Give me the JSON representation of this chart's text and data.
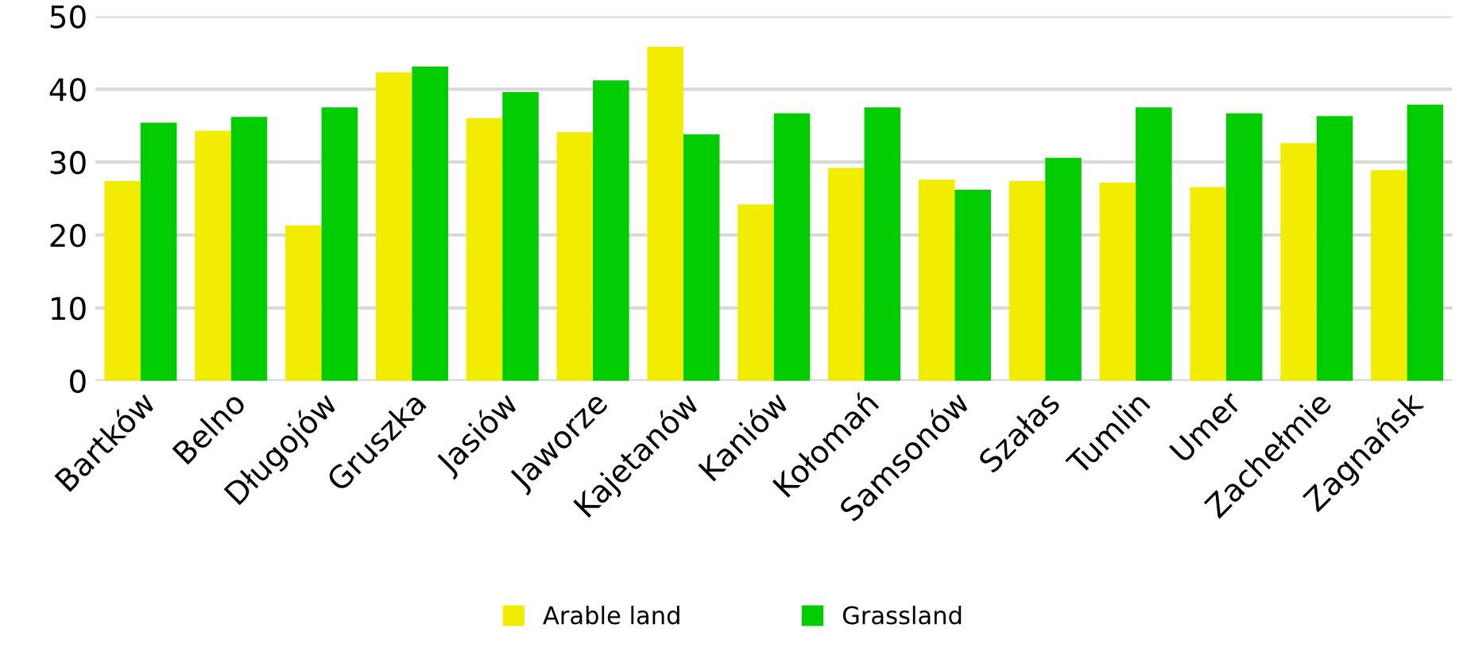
{
  "chart_data": {
    "type": "bar",
    "categories": [
      "Bartków",
      "Belno",
      "Długojów",
      "Gruszka",
      "Jasiów",
      "Jaworze",
      "Kajetanów",
      "Kaniów",
      "Kołomań",
      "Samsonów",
      "Szałas",
      "Tumlin",
      "Umer",
      "Zachełmie",
      "Zagnańsk"
    ],
    "series": [
      {
        "name": "Arable land",
        "color": "#f2ec00",
        "values": [
          27.4,
          34.3,
          21.3,
          42.3,
          36.0,
          34.1,
          45.8,
          24.2,
          29.2,
          27.6,
          27.4,
          27.2,
          26.6,
          32.6,
          28.9
        ]
      },
      {
        "name": "Grassland",
        "color": "#00cc00",
        "values": [
          35.4,
          36.2,
          37.5,
          43.1,
          39.6,
          41.2,
          33.8,
          36.7,
          37.5,
          26.2,
          30.6,
          37.5,
          36.7,
          36.3,
          37.9
        ]
      }
    ],
    "ylim": [
      0,
      50
    ],
    "yticks": [
      0,
      10,
      20,
      30,
      40,
      50
    ],
    "grid": "y",
    "legend": "bottom"
  }
}
